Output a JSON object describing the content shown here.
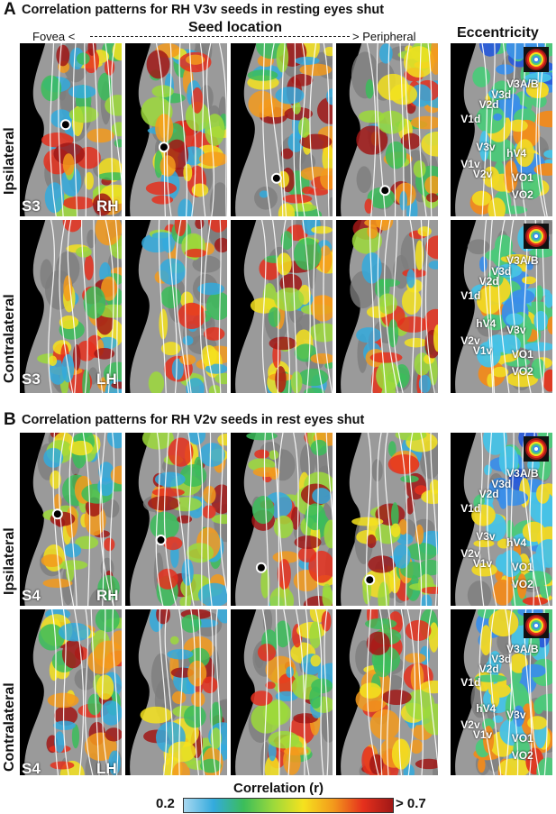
{
  "panel_a": {
    "letter": "A",
    "title": "Correlation patterns for RH V3v seeds in resting eyes shut",
    "axis_left": "Fovea <",
    "axis_center": "Seed location",
    "axis_right": "> Peripheral",
    "eccentricity_header": "Eccentricity",
    "row_top": "Ipsilateral",
    "row_bottom": "Contralateral",
    "subject_top": "S3",
    "hemi_top": "RH",
    "subject_bottom": "S3",
    "hemi_bottom": "LH",
    "roi_labels_top": [
      "V3A/B",
      "V3d",
      "V2d",
      "V1d",
      "V3v",
      "hV4",
      "V1v",
      "V2v",
      "VO1",
      "VO2"
    ],
    "roi_labels_bottom": [
      "V3A/B",
      "V3d",
      "V2d",
      "V1d",
      "hV4",
      "V3v",
      "V2v",
      "V1v",
      "VO1",
      "VO2"
    ]
  },
  "panel_b": {
    "letter": "B",
    "title": "Correlation patterns for RH V2v seeds in rest eyes shut",
    "eccentricity_header": "",
    "row_top": "Ipsilateral",
    "row_bottom": "Contralateral",
    "subject_top": "S4",
    "hemi_top": "RH",
    "subject_bottom": "S4",
    "hemi_bottom": "LH",
    "roi_labels_top": [
      "V3A/B",
      "V3d",
      "V2d",
      "V1d",
      "V3v",
      "hV4",
      "V2v",
      "V1v",
      "VO1",
      "VO2"
    ],
    "roi_labels_bottom": [
      "V3A/B",
      "V3d",
      "V2d",
      "V1d",
      "hV4",
      "V3v",
      "V2v",
      "V1v",
      "VO1",
      "VO2"
    ]
  },
  "colorbar": {
    "label": "Correlation (r)",
    "min_label": "0.2",
    "max_label": "> 0.7",
    "colors": [
      "#a8d8f0",
      "#33aadd",
      "#3bbd5a",
      "#9cd93b",
      "#f5e21e",
      "#f39a1c",
      "#e5301d",
      "#a01816"
    ]
  },
  "colors": {
    "black": "#000000",
    "gray_cortex": "#9a9a9a",
    "gray_sulcus": "#7d7d7d",
    "seed_marker": "#ffffff"
  }
}
